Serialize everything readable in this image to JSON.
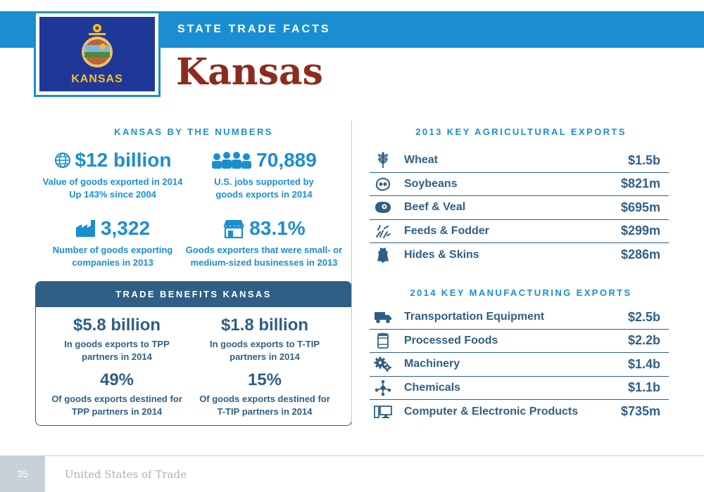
{
  "header": {
    "kicker": "STATE TRADE FACTS",
    "state_name": "Kansas",
    "flag_label": "KANSAS",
    "colors": {
      "band": "#1a8ed1",
      "title": "#8e2a20",
      "flag_blue": "#1f3897",
      "flag_gold": "#f3c02c"
    }
  },
  "by_numbers": {
    "heading": "KANSAS BY THE NUMBERS",
    "stats": [
      {
        "icon": "globe-icon",
        "value": "$12 billion",
        "desc_line1": "Value of goods exported in 2014",
        "desc_line2": "Up 143% since 2004"
      },
      {
        "icon": "workers-icon",
        "value": "70,889",
        "desc_line1": "U.S. jobs supported by",
        "desc_line2": "goods exports in 2014"
      },
      {
        "icon": "factory-icon",
        "value": "3,322",
        "desc_line1": "Number of goods exporting",
        "desc_line2": "companies in 2013"
      },
      {
        "icon": "storefront-icon",
        "value": "83.1%",
        "desc_line1": "Goods exporters that were small- or",
        "desc_line2": "medium-sized businesses in 2013"
      }
    ]
  },
  "trade_benefits": {
    "heading": "TRADE BENEFITS KANSAS",
    "stats": [
      {
        "value": "$5.8 billion",
        "desc_line1": "In goods exports to TPP",
        "desc_line2": "partners in 2014"
      },
      {
        "value": "$1.8 billion",
        "desc_line1": "In goods exports to T-TIP",
        "desc_line2": "partners in 2014"
      },
      {
        "value": "49%",
        "desc_line1": "Of goods exports destined for",
        "desc_line2": "TPP partners in 2014"
      },
      {
        "value": "15%",
        "desc_line1": "Of goods exports destined for",
        "desc_line2": "T-TIP partners in 2014"
      }
    ]
  },
  "agricultural": {
    "heading": "2013 KEY AGRICULTURAL EXPORTS",
    "items": [
      {
        "icon": "wheat-icon",
        "name": "Wheat",
        "value": "$1.5b"
      },
      {
        "icon": "soybean-icon",
        "name": "Soybeans",
        "value": "$821m"
      },
      {
        "icon": "steak-icon",
        "name": "Beef & Veal",
        "value": "$695m"
      },
      {
        "icon": "feed-icon",
        "name": "Feeds & Fodder",
        "value": "$299m"
      },
      {
        "icon": "hide-icon",
        "name": "Hides & Skins",
        "value": "$286m"
      }
    ]
  },
  "manufacturing": {
    "heading": "2014 KEY MANUFACTURING EXPORTS",
    "items": [
      {
        "icon": "truck-icon",
        "name": "Transportation Equipment",
        "value": "$2.5b"
      },
      {
        "icon": "can-icon",
        "name": "Processed Foods",
        "value": "$2.2b"
      },
      {
        "icon": "gears-icon",
        "name": "Machinery",
        "value": "$1.4b"
      },
      {
        "icon": "molecule-icon",
        "name": "Chemicals",
        "value": "$1.1b"
      },
      {
        "icon": "computer-icon",
        "name": "Computer & Electronic Products",
        "value": "$735m"
      }
    ]
  },
  "footer": {
    "page_number": "35",
    "publication": "United States of Trade"
  }
}
